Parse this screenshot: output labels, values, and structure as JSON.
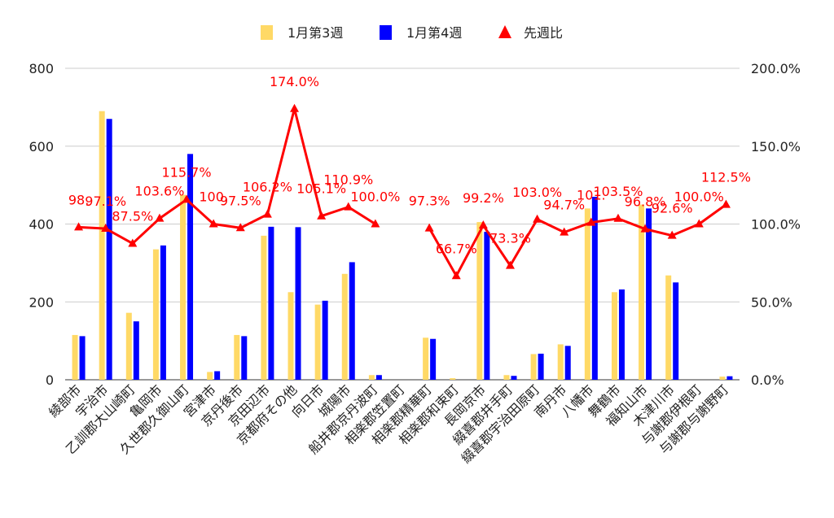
{
  "chart_data": {
    "type": "bar",
    "legend_position": "top",
    "grid": true,
    "categories": [
      "綾部市",
      "宇治市",
      "乙訓郡大山崎町",
      "亀岡市",
      "久世郡久御山町",
      "宮津市",
      "京丹後市",
      "京田辺市",
      "京都府その他",
      "向日市",
      "城陽市",
      "船井郡京丹波町",
      "相楽郡笠置町",
      "相楽郡精華町",
      "相楽郡和束町",
      "長岡京市",
      "綴喜郡井手町",
      "綴喜郡宇治田原町",
      "南丹市",
      "八幡市",
      "舞鶴市",
      "福知山市",
      "木津川市",
      "与謝郡伊根町",
      "与謝郡与謝野町"
    ],
    "series": [
      {
        "name": "1月第3週",
        "axis": "left",
        "kind": "bar",
        "color": "#FFD966",
        "values": [
          115,
          690,
          172,
          335,
          475,
          20,
          115,
          370,
          225,
          193,
          272,
          12,
          0,
          108,
          4,
          405,
          12,
          66,
          91,
          440,
          225,
          450,
          268,
          0,
          8
        ]
      },
      {
        "name": "1月第4週",
        "axis": "left",
        "kind": "bar",
        "color": "#0000FF",
        "values": [
          112,
          670,
          150,
          345,
          580,
          22,
          112,
          393,
          392,
          203,
          302,
          12,
          0,
          105,
          0,
          380,
          10,
          67,
          87,
          470,
          232,
          440,
          250,
          0,
          9
        ]
      },
      {
        "name": "先週比",
        "axis": "right",
        "kind": "line",
        "color": "#FF0000",
        "marker": "triangle",
        "values": [
          98.0,
          97.1,
          87.5,
          103.6,
          115.7,
          100.0,
          97.5,
          106.2,
          174.0,
          105.1,
          110.9,
          100.0,
          null,
          97.3,
          66.7,
          99.2,
          73.3,
          103.0,
          94.7,
          101.0,
          103.5,
          96.8,
          92.6,
          100.0,
          112.5
        ],
        "labels": [
          "98.",
          "97.1%",
          "87.5%",
          "103.6%",
          "115.7%",
          "100.",
          "97.5%",
          "106.2%",
          "174.0%",
          "105.1%",
          "110.9%",
          "100.0%",
          "",
          "97.3%",
          "66.7%",
          "99.2%",
          "73.3%",
          "103.0%",
          "94.7%",
          "101.",
          "103.5%",
          "96.8%",
          "92.6%",
          "100.0%",
          "112.5%"
        ]
      }
    ],
    "y_left": {
      "min": 0,
      "max": 800,
      "ticks": [
        "0",
        "200",
        "400",
        "600",
        "800"
      ]
    },
    "y_right": {
      "min": 0,
      "max": 200,
      "ticks": [
        "0.0%",
        "50.0%",
        "100.0%",
        "150.0%",
        "200.0%"
      ]
    }
  }
}
